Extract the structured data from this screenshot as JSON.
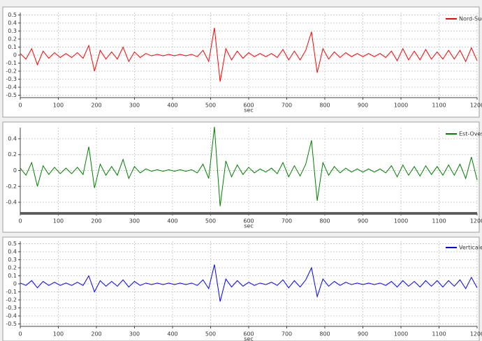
{
  "chart_data": [
    {
      "type": "line",
      "xlabel": "sec",
      "legend": "upper right",
      "grid": true,
      "xlim": [
        0,
        1200
      ],
      "xticks": [
        0,
        100,
        200,
        300,
        400,
        500,
        600,
        700,
        800,
        900,
        1000,
        1100,
        1200
      ],
      "ylim": [
        -0.53,
        0.53
      ],
      "yticks": [
        -0.5,
        -0.4,
        -0.3,
        -0.2,
        -0.1,
        0,
        0.1,
        0.2,
        0.3,
        0.4,
        0.5
      ],
      "x": [
        0,
        15,
        30,
        45,
        60,
        75,
        90,
        105,
        120,
        135,
        150,
        165,
        180,
        195,
        210,
        225,
        240,
        255,
        270,
        285,
        300,
        315,
        330,
        345,
        360,
        375,
        390,
        405,
        420,
        435,
        450,
        465,
        480,
        495,
        510,
        525,
        540,
        555,
        570,
        585,
        600,
        615,
        630,
        645,
        660,
        675,
        690,
        705,
        720,
        735,
        750,
        765,
        780,
        795,
        810,
        825,
        840,
        855,
        870,
        885,
        900,
        915,
        930,
        945,
        960,
        975,
        990,
        1005,
        1020,
        1035,
        1050,
        1065,
        1080,
        1095,
        1110,
        1125,
        1140,
        1155,
        1170,
        1185,
        1200
      ],
      "series": [
        {
          "name": "Nord-Sud",
          "color": "#ff0000",
          "values": [
            0.02,
            -0.05,
            0.08,
            -0.12,
            0.05,
            -0.04,
            0.03,
            -0.03,
            0.02,
            -0.03,
            0.03,
            -0.04,
            0.12,
            -0.2,
            0.06,
            -0.05,
            0.04,
            -0.05,
            0.1,
            -0.08,
            0.04,
            -0.03,
            0.02,
            -0.01,
            0.01,
            -0.01,
            0.01,
            -0.01,
            0.01,
            -0.01,
            0.01,
            -0.02,
            0.06,
            -0.08,
            0.34,
            -0.33,
            0.08,
            -0.06,
            0.05,
            -0.04,
            0.03,
            -0.02,
            0.02,
            -0.02,
            0.02,
            -0.03,
            0.07,
            -0.06,
            0.05,
            -0.06,
            0.06,
            0.29,
            -0.22,
            0.08,
            -0.05,
            0.04,
            -0.03,
            0.03,
            -0.02,
            0.02,
            -0.02,
            0.02,
            -0.02,
            0.02,
            -0.03,
            0.05,
            -0.07,
            0.08,
            -0.06,
            0.05,
            -0.06,
            0.07,
            -0.05,
            0.04,
            -0.05,
            0.06,
            -0.05,
            0.06,
            -0.08,
            0.09,
            -0.07
          ]
        }
      ]
    },
    {
      "type": "line",
      "xlabel": "sec",
      "legend": "upper right",
      "grid": true,
      "xlim": [
        0,
        1200
      ],
      "xticks": [
        0,
        100,
        200,
        300,
        400,
        500,
        600,
        700,
        800,
        900,
        1000,
        1100,
        1200
      ],
      "ylim": [
        -0.54,
        0.54
      ],
      "yticks": [
        -0.4,
        -0.2,
        0,
        0.2,
        0.4
      ],
      "x": [
        0,
        15,
        30,
        45,
        60,
        75,
        90,
        105,
        120,
        135,
        150,
        165,
        180,
        195,
        210,
        225,
        240,
        255,
        270,
        285,
        300,
        315,
        330,
        345,
        360,
        375,
        390,
        405,
        420,
        435,
        450,
        465,
        480,
        495,
        510,
        525,
        540,
        555,
        570,
        585,
        600,
        615,
        630,
        645,
        660,
        675,
        690,
        705,
        720,
        735,
        750,
        765,
        780,
        795,
        810,
        825,
        840,
        855,
        870,
        885,
        900,
        915,
        930,
        945,
        960,
        975,
        990,
        1005,
        1020,
        1035,
        1050,
        1065,
        1080,
        1095,
        1110,
        1125,
        1140,
        1155,
        1170,
        1185,
        1200
      ],
      "series": [
        {
          "name": "Est-Ovest",
          "color": "#008000",
          "values": [
            0.03,
            -0.06,
            0.1,
            -0.2,
            0.06,
            -0.05,
            0.04,
            -0.04,
            0.03,
            -0.04,
            0.04,
            -0.05,
            0.3,
            -0.22,
            0.08,
            -0.06,
            0.05,
            -0.06,
            0.14,
            -0.1,
            0.05,
            -0.03,
            0.02,
            -0.01,
            0.01,
            -0.01,
            0.01,
            -0.01,
            0.01,
            -0.01,
            0.01,
            -0.03,
            0.08,
            -0.1,
            0.55,
            -0.45,
            0.12,
            -0.08,
            0.07,
            -0.05,
            0.04,
            -0.03,
            0.02,
            -0.02,
            0.03,
            -0.04,
            0.1,
            -0.08,
            0.06,
            -0.07,
            0.08,
            0.38,
            -0.38,
            0.1,
            -0.06,
            0.05,
            -0.03,
            0.03,
            -0.02,
            0.02,
            -0.02,
            0.02,
            -0.02,
            0.02,
            -0.03,
            0.06,
            -0.08,
            0.07,
            -0.06,
            0.05,
            -0.07,
            0.06,
            -0.05,
            0.05,
            -0.06,
            0.07,
            -0.06,
            0.08,
            -0.1,
            0.17,
            -0.12
          ]
        }
      ]
    },
    {
      "type": "line",
      "xlabel": "sec",
      "legend": "upper right",
      "grid": true,
      "xlim": [
        0,
        1200
      ],
      "xticks": [
        0,
        100,
        200,
        300,
        400,
        500,
        600,
        700,
        800,
        900,
        1000,
        1100,
        1200
      ],
      "ylim": [
        -0.53,
        0.53
      ],
      "yticks": [
        -0.5,
        -0.4,
        -0.3,
        -0.2,
        -0.1,
        0,
        0.1,
        0.2,
        0.3,
        0.4,
        0.5
      ],
      "x": [
        0,
        15,
        30,
        45,
        60,
        75,
        90,
        105,
        120,
        135,
        150,
        165,
        180,
        195,
        210,
        225,
        240,
        255,
        270,
        285,
        300,
        315,
        330,
        345,
        360,
        375,
        390,
        405,
        420,
        435,
        450,
        465,
        480,
        495,
        510,
        525,
        540,
        555,
        570,
        585,
        600,
        615,
        630,
        645,
        660,
        675,
        690,
        705,
        720,
        735,
        750,
        765,
        780,
        795,
        810,
        825,
        840,
        855,
        870,
        885,
        900,
        915,
        930,
        945,
        960,
        975,
        990,
        1005,
        1020,
        1035,
        1050,
        1065,
        1080,
        1095,
        1110,
        1125,
        1140,
        1155,
        1170,
        1185,
        1200
      ],
      "series": [
        {
          "name": "Verticale",
          "color": "#0000ff",
          "values": [
            0.01,
            -0.02,
            0.04,
            -0.05,
            0.03,
            -0.02,
            0.02,
            -0.02,
            0.01,
            -0.02,
            0.02,
            -0.02,
            0.1,
            -0.1,
            0.04,
            -0.03,
            0.03,
            -0.03,
            0.05,
            -0.04,
            0.03,
            -0.02,
            0.01,
            -0.01,
            0.01,
            -0.01,
            0.01,
            -0.01,
            0.01,
            -0.01,
            0.01,
            -0.02,
            0.05,
            -0.06,
            0.24,
            -0.22,
            0.06,
            -0.04,
            0.04,
            -0.03,
            0.02,
            -0.02,
            0.01,
            -0.01,
            0.02,
            -0.02,
            0.05,
            -0.05,
            0.04,
            -0.04,
            0.05,
            0.2,
            -0.16,
            0.06,
            -0.03,
            0.03,
            -0.02,
            0.02,
            -0.01,
            0.01,
            -0.01,
            0.01,
            -0.01,
            0.01,
            -0.02,
            0.03,
            -0.04,
            0.04,
            -0.03,
            0.03,
            -0.04,
            0.04,
            -0.03,
            0.04,
            -0.04,
            0.04,
            -0.03,
            0.05,
            -0.06,
            0.08,
            -0.05
          ]
        }
      ]
    }
  ]
}
